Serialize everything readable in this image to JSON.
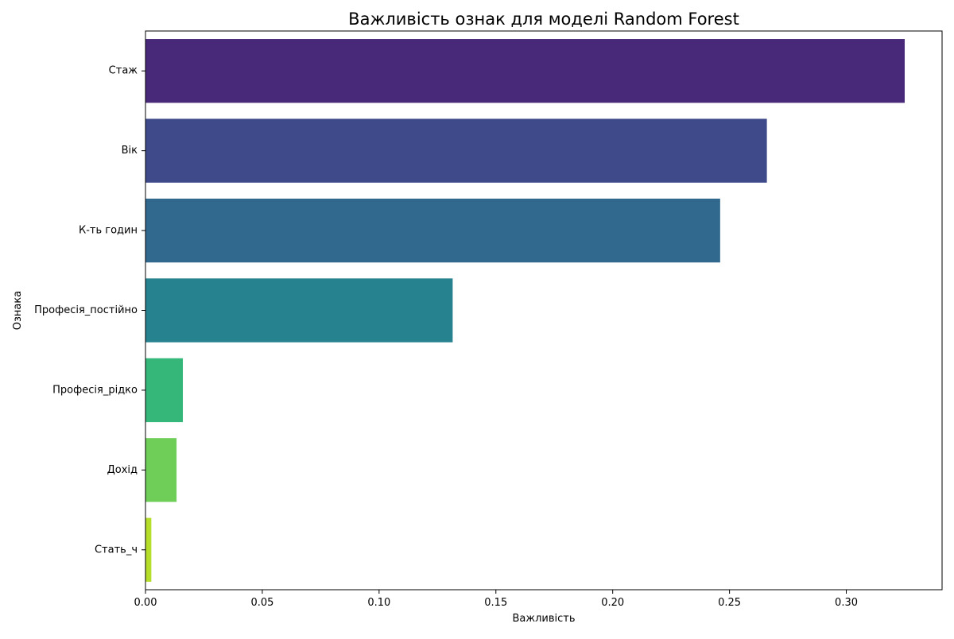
{
  "chart_data": {
    "type": "bar",
    "orientation": "horizontal",
    "title": "Важливість ознак для моделі Random Forest",
    "xlabel": "Важливість",
    "ylabel": "Ознака",
    "categories": [
      "Стаж",
      "Вік",
      "К-ть годин",
      "Професія_постійно",
      "Професія_рідко",
      "Дохід",
      "Стать_ч"
    ],
    "values": [
      0.325,
      0.266,
      0.246,
      0.1315,
      0.016,
      0.0133,
      0.0025
    ],
    "colors": [
      "#482878",
      "#3e4a89",
      "#31688e",
      "#26828e",
      "#35b779",
      "#6ece58",
      "#b5de2b"
    ],
    "xlim": [
      0,
      0.341
    ],
    "xticks": [
      0.0,
      0.05,
      0.1,
      0.15,
      0.2,
      0.25,
      0.3
    ],
    "xtick_labels": [
      "0.00",
      "0.05",
      "0.10",
      "0.15",
      "0.20",
      "0.25",
      "0.30"
    ],
    "grid": false,
    "legend": false
  }
}
